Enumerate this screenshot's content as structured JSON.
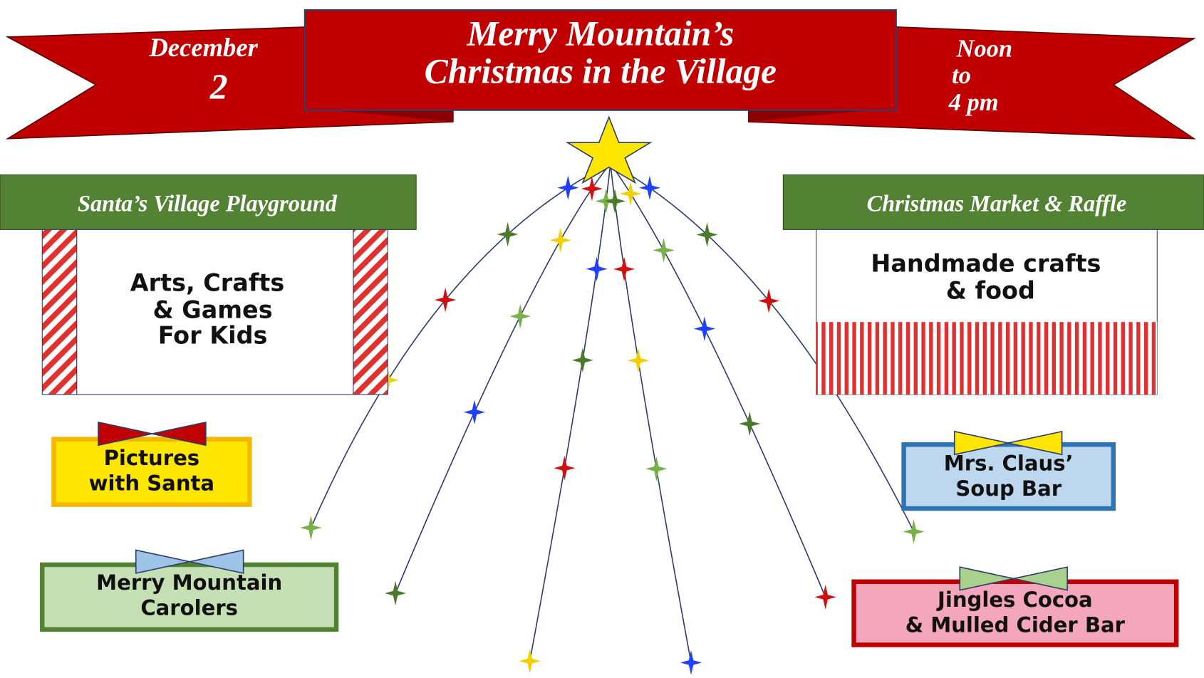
{
  "banner": {
    "date": [
      "December",
      "2"
    ],
    "title": [
      "Merry Mountain’s",
      "Christmas in the Village"
    ],
    "time": [
      "Noon",
      "to",
      "4 pm"
    ]
  },
  "playground": {
    "title": "Santa’s Village Playground",
    "body": [
      "Arts, Crafts",
      "& Games",
      "For Kids"
    ]
  },
  "market": {
    "title": "Christmas Market & Raffle",
    "body": [
      "Handmade crafts",
      "& food"
    ]
  },
  "stations": [
    {
      "lines": [
        "Pictures",
        "with Santa"
      ]
    },
    {
      "lines": [
        "Merry Mountain",
        "Carolers"
      ]
    },
    {
      "lines": [
        "Mrs. Claus’",
        "Soup Bar"
      ]
    },
    {
      "lines": [
        "Jingles Cocoa",
        "& Mulled Cider Bar"
      ]
    }
  ]
}
